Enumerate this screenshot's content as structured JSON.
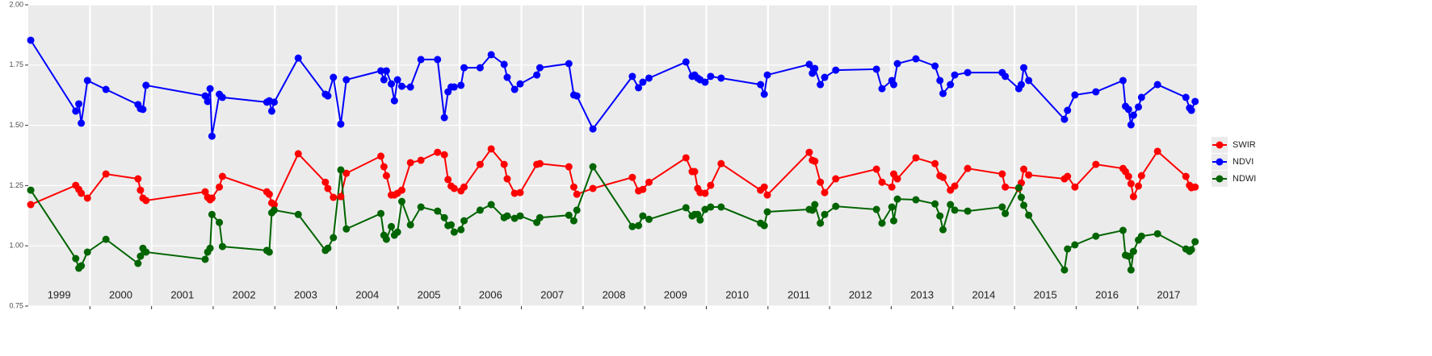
{
  "chart_data": {
    "type": "line",
    "x": [
      1999.04,
      1999.77,
      1999.82,
      1999.86,
      1999.96,
      2000.26,
      2000.78,
      2000.82,
      2000.86,
      2000.91,
      2001.87,
      2001.91,
      2001.95,
      2001.98,
      2002.1,
      2002.15,
      2002.87,
      2002.91,
      2002.95,
      2002.99,
      2003.38,
      2003.82,
      2003.86,
      2003.95,
      2004.07,
      2004.16,
      2004.72,
      2004.77,
      2004.81,
      2004.89,
      2004.94,
      2004.99,
      2005.06,
      2005.2,
      2005.37,
      2005.64,
      2005.75,
      2005.81,
      2005.86,
      2005.91,
      2006.02,
      2006.07,
      2006.33,
      2006.51,
      2006.72,
      2006.77,
      2006.89,
      2006.98,
      2007.25,
      2007.3,
      2007.77,
      2007.85,
      2007.9,
      2008.16,
      2008.8,
      2008.9,
      2008.97,
      2009.07,
      2009.67,
      2009.77,
      2009.81,
      2009.86,
      2009.9,
      2009.98,
      2010.07,
      2010.24,
      2010.88,
      2010.94,
      2010.99,
      2011.67,
      2011.72,
      2011.76,
      2011.85,
      2011.92,
      2012.1,
      2012.76,
      2012.85,
      2013.01,
      2013.04,
      2013.1,
      2013.4,
      2013.71,
      2013.79,
      2013.84,
      2013.96,
      2014.03,
      2014.24,
      2014.8,
      2014.85,
      2015.07,
      2015.11,
      2015.15,
      2015.23,
      2015.81,
      2015.86,
      2015.98,
      2016.32,
      2016.76,
      2016.8,
      2016.85,
      2016.89,
      2016.93,
      2017.01,
      2017.06,
      2017.32,
      2017.78,
      2017.84,
      2017.87,
      2017.93
    ],
    "series": [
      {
        "name": "SWIR",
        "color": "#ff0000",
        "values": [
          1.171,
          1.251,
          1.234,
          1.218,
          1.198,
          1.298,
          1.278,
          1.231,
          1.198,
          1.188,
          1.224,
          1.201,
          1.191,
          1.198,
          1.244,
          1.288,
          1.224,
          1.214,
          1.178,
          1.171,
          1.382,
          1.264,
          1.238,
          1.201,
          1.204,
          1.301,
          1.372,
          1.328,
          1.291,
          1.211,
          1.211,
          1.218,
          1.231,
          1.345,
          1.355,
          1.388,
          1.378,
          1.275,
          1.248,
          1.238,
          1.228,
          1.244,
          1.338,
          1.402,
          1.338,
          1.278,
          1.218,
          1.221,
          1.338,
          1.341,
          1.328,
          1.244,
          1.214,
          1.238,
          1.284,
          1.228,
          1.234,
          1.264,
          1.365,
          1.308,
          1.308,
          1.238,
          1.221,
          1.218,
          1.251,
          1.341,
          1.231,
          1.244,
          1.211,
          1.388,
          1.355,
          1.351,
          1.264,
          1.221,
          1.278,
          1.318,
          1.264,
          1.244,
          1.298,
          1.278,
          1.365,
          1.341,
          1.291,
          1.284,
          1.231,
          1.248,
          1.321,
          1.298,
          1.244,
          1.238,
          1.261,
          1.318,
          1.294,
          1.278,
          1.288,
          1.244,
          1.338,
          1.321,
          1.308,
          1.288,
          1.258,
          1.204,
          1.248,
          1.291,
          1.392,
          1.288,
          1.251,
          1.241,
          1.244
        ]
      },
      {
        "name": "NDVI",
        "color": "#0000ff",
        "values": [
          1.853,
          1.559,
          1.589,
          1.509,
          1.686,
          1.649,
          1.586,
          1.569,
          1.566,
          1.666,
          1.622,
          1.599,
          1.652,
          1.455,
          1.629,
          1.616,
          1.596,
          1.602,
          1.559,
          1.596,
          1.779,
          1.629,
          1.622,
          1.699,
          1.505,
          1.689,
          1.726,
          1.689,
          1.726,
          1.672,
          1.602,
          1.689,
          1.662,
          1.659,
          1.773,
          1.773,
          1.532,
          1.639,
          1.659,
          1.659,
          1.666,
          1.739,
          1.739,
          1.793,
          1.753,
          1.699,
          1.649,
          1.672,
          1.709,
          1.739,
          1.756,
          1.626,
          1.622,
          1.485,
          1.703,
          1.656,
          1.679,
          1.696,
          1.763,
          1.703,
          1.709,
          1.696,
          1.689,
          1.679,
          1.703,
          1.696,
          1.669,
          1.629,
          1.709,
          1.753,
          1.716,
          1.736,
          1.669,
          1.699,
          1.729,
          1.733,
          1.652,
          1.686,
          1.669,
          1.756,
          1.776,
          1.746,
          1.686,
          1.632,
          1.669,
          1.709,
          1.719,
          1.719,
          1.703,
          1.652,
          1.669,
          1.739,
          1.686,
          1.525,
          1.562,
          1.626,
          1.639,
          1.686,
          1.579,
          1.566,
          1.502,
          1.542,
          1.576,
          1.616,
          1.669,
          1.616,
          1.572,
          1.562,
          1.599
        ]
      },
      {
        "name": "NDWI",
        "color": "#006400",
        "values": [
          1.231,
          0.947,
          0.907,
          0.917,
          0.974,
          1.027,
          0.927,
          0.957,
          0.99,
          0.974,
          0.944,
          0.974,
          0.99,
          1.13,
          1.097,
          0.997,
          0.981,
          0.974,
          1.137,
          1.148,
          1.13,
          0.981,
          0.99,
          1.034,
          1.315,
          1.07,
          1.134,
          1.044,
          1.027,
          1.08,
          1.044,
          1.057,
          1.184,
          1.087,
          1.161,
          1.144,
          1.117,
          1.084,
          1.087,
          1.057,
          1.067,
          1.104,
          1.148,
          1.171,
          1.117,
          1.124,
          1.114,
          1.124,
          1.097,
          1.117,
          1.127,
          1.104,
          1.148,
          1.328,
          1.08,
          1.084,
          1.124,
          1.11,
          1.158,
          1.124,
          1.13,
          1.13,
          1.107,
          1.151,
          1.161,
          1.161,
          1.094,
          1.084,
          1.141,
          1.151,
          1.148,
          1.171,
          1.094,
          1.13,
          1.164,
          1.151,
          1.094,
          1.161,
          1.104,
          1.194,
          1.191,
          1.174,
          1.124,
          1.067,
          1.171,
          1.148,
          1.144,
          1.161,
          1.134,
          1.241,
          1.201,
          1.168,
          1.127,
          0.9,
          0.987,
          1.004,
          1.04,
          1.064,
          0.961,
          0.957,
          0.9,
          0.977,
          1.024,
          1.04,
          1.05,
          0.987,
          0.977,
          0.984,
          1.017
        ]
      }
    ],
    "xlim": [
      1999.0,
      2017.96
    ],
    "xticks": [
      2000,
      2001,
      2002,
      2003,
      2004,
      2005,
      2006,
      2007,
      2008,
      2009,
      2010,
      2011,
      2012,
      2013,
      2014,
      2015,
      2016,
      2017
    ],
    "year_labels": [
      {
        "value": 1999.5,
        "label": "1999"
      },
      {
        "value": 2000.5,
        "label": "2000"
      },
      {
        "value": 2001.5,
        "label": "2001"
      },
      {
        "value": 2002.5,
        "label": "2002"
      },
      {
        "value": 2003.5,
        "label": "2003"
      },
      {
        "value": 2004.5,
        "label": "2004"
      },
      {
        "value": 2005.5,
        "label": "2005"
      },
      {
        "value": 2006.5,
        "label": "2006"
      },
      {
        "value": 2007.5,
        "label": "2007"
      },
      {
        "value": 2008.5,
        "label": "2008"
      },
      {
        "value": 2009.5,
        "label": "2009"
      },
      {
        "value": 2010.5,
        "label": "2010"
      },
      {
        "value": 2011.5,
        "label": "2011"
      },
      {
        "value": 2012.5,
        "label": "2012"
      },
      {
        "value": 2013.5,
        "label": "2013"
      },
      {
        "value": 2014.5,
        "label": "2014"
      },
      {
        "value": 2015.5,
        "label": "2015"
      },
      {
        "value": 2016.5,
        "label": "2016"
      },
      {
        "value": 2017.5,
        "label": "2017"
      }
    ],
    "ylim": [
      0.75,
      2.0
    ],
    "yticks": [
      0.75,
      {
        "value": 1.0,
        "label": "1.00"
      },
      1.25,
      {
        "value": 1.5,
        "label": "1.50"
      },
      1.75,
      {
        "value": 2.0,
        "label": "2.00"
      }
    ],
    "grid": true,
    "legend": "right"
  }
}
